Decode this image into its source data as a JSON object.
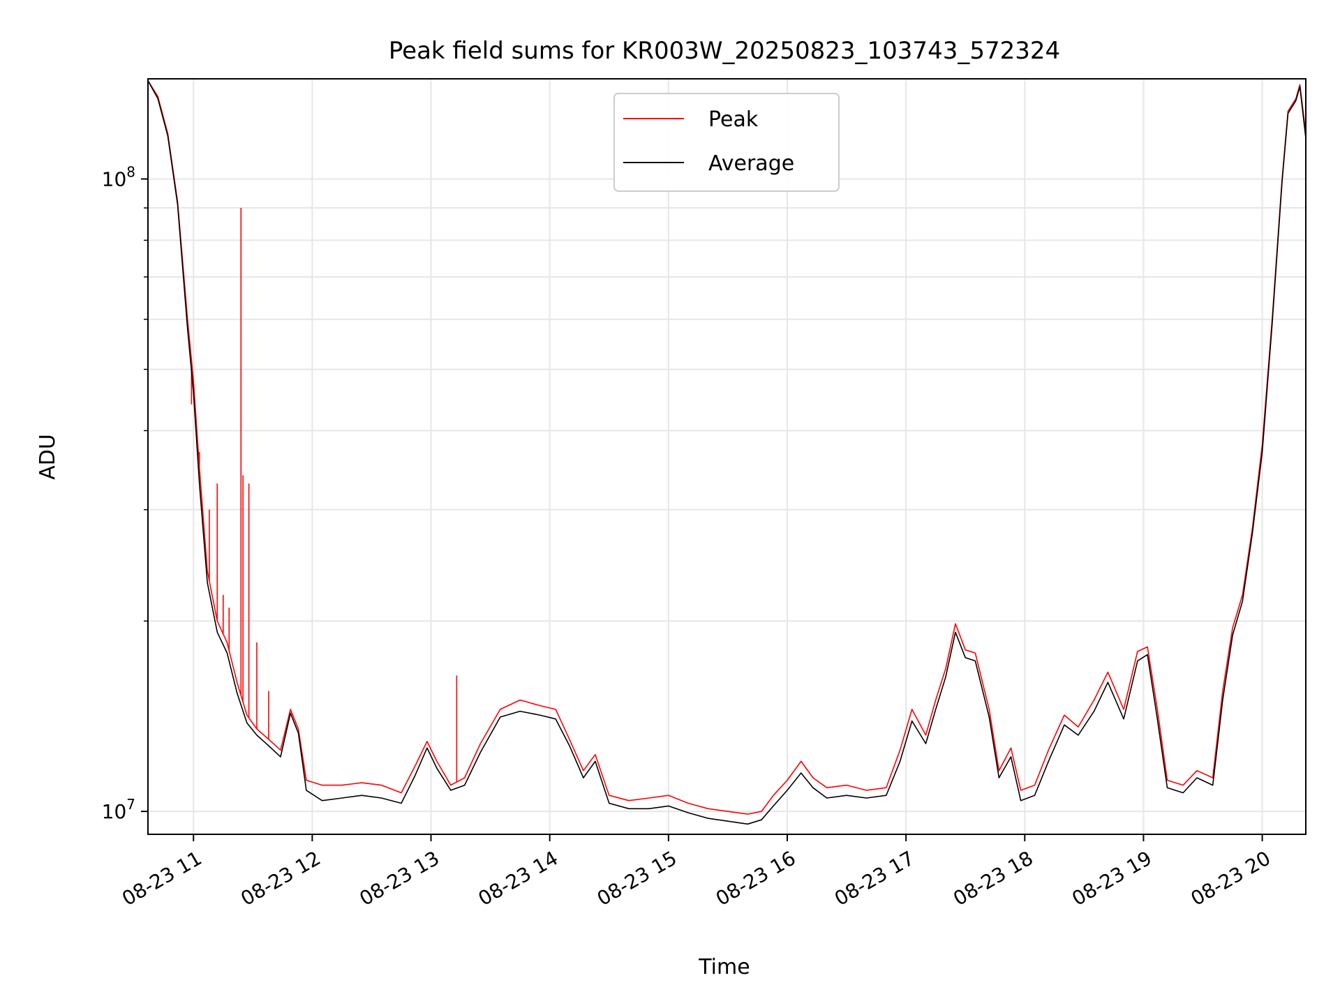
{
  "chart_data": {
    "type": "line",
    "title": "Peak field sums for KR003W_20250823_103743_572324",
    "xlabel": "Time",
    "ylabel": "ADU",
    "y_scale": "log",
    "ylim": [
      9200000,
      144000000
    ],
    "xlim": [
      "2025-08-23 10:37",
      "2025-08-23 20:22"
    ],
    "grid": true,
    "legend_position": "top-center",
    "x_ticks": [
      {
        "t": "2025-08-23 11:00",
        "label": "08-23 11"
      },
      {
        "t": "2025-08-23 12:00",
        "label": "08-23 12"
      },
      {
        "t": "2025-08-23 13:00",
        "label": "08-23 13"
      },
      {
        "t": "2025-08-23 14:00",
        "label": "08-23 14"
      },
      {
        "t": "2025-08-23 15:00",
        "label": "08-23 15"
      },
      {
        "t": "2025-08-23 16:00",
        "label": "08-23 16"
      },
      {
        "t": "2025-08-23 17:00",
        "label": "08-23 17"
      },
      {
        "t": "2025-08-23 18:00",
        "label": "08-23 18"
      },
      {
        "t": "2025-08-23 19:00",
        "label": "08-23 19"
      },
      {
        "t": "2025-08-23 20:00",
        "label": "08-23 20"
      }
    ],
    "y_ticks_major": [
      {
        "value": 10000000,
        "base": "10",
        "exp": "7"
      },
      {
        "value": 100000000,
        "base": "10",
        "exp": "8"
      }
    ],
    "y_ticks_minor": [
      20000000,
      30000000,
      40000000,
      50000000,
      60000000,
      70000000,
      80000000,
      90000000
    ],
    "series": [
      {
        "name": "Peak",
        "color": "#ff0000",
        "points": [
          [
            "2025-08-23 10:37",
            143000000
          ],
          [
            "2025-08-23 10:42",
            135000000
          ],
          [
            "2025-08-23 10:47",
            118000000
          ],
          [
            "2025-08-23 10:52",
            92000000
          ],
          [
            "2025-08-23 10:57",
            60000000
          ],
          [
            "2025-08-23 11:00",
            48000000
          ],
          [
            "2025-08-23 11:03",
            35000000
          ],
          [
            "2025-08-23 11:07",
            24000000
          ],
          [
            "2025-08-23 11:12",
            20000000
          ],
          [
            "2025-08-23 11:17",
            18500000
          ],
          [
            "2025-08-23 11:22",
            16000000
          ],
          [
            "2025-08-23 11:27",
            14200000
          ],
          [
            "2025-08-23 11:32",
            13500000
          ],
          [
            "2025-08-23 11:38",
            13000000
          ],
          [
            "2025-08-23 11:44",
            12500000
          ],
          [
            "2025-08-23 11:49",
            14500000
          ],
          [
            "2025-08-23 11:53",
            13500000
          ],
          [
            "2025-08-23 11:57",
            11200000
          ],
          [
            "2025-08-23 12:05",
            11000000
          ],
          [
            "2025-08-23 12:15",
            11000000
          ],
          [
            "2025-08-23 12:25",
            11100000
          ],
          [
            "2025-08-23 12:35",
            11000000
          ],
          [
            "2025-08-23 12:45",
            10700000
          ],
          [
            "2025-08-23 12:52",
            11800000
          ],
          [
            "2025-08-23 12:58",
            12900000
          ],
          [
            "2025-08-23 13:03",
            12000000
          ],
          [
            "2025-08-23 13:10",
            11000000
          ],
          [
            "2025-08-23 13:17",
            11300000
          ],
          [
            "2025-08-23 13:25",
            12800000
          ],
          [
            "2025-08-23 13:35",
            14500000
          ],
          [
            "2025-08-23 13:45",
            15000000
          ],
          [
            "2025-08-23 13:55",
            14700000
          ],
          [
            "2025-08-23 14:03",
            14500000
          ],
          [
            "2025-08-23 14:10",
            13000000
          ],
          [
            "2025-08-23 14:17",
            11600000
          ],
          [
            "2025-08-23 14:23",
            12300000
          ],
          [
            "2025-08-23 14:30",
            10600000
          ],
          [
            "2025-08-23 14:40",
            10400000
          ],
          [
            "2025-08-23 14:50",
            10500000
          ],
          [
            "2025-08-23 15:00",
            10600000
          ],
          [
            "2025-08-23 15:10",
            10300000
          ],
          [
            "2025-08-23 15:20",
            10100000
          ],
          [
            "2025-08-23 15:30",
            10000000
          ],
          [
            "2025-08-23 15:40",
            9900000
          ],
          [
            "2025-08-23 15:47",
            10000000
          ],
          [
            "2025-08-23 15:53",
            10600000
          ],
          [
            "2025-08-23 16:00",
            11200000
          ],
          [
            "2025-08-23 16:07",
            12000000
          ],
          [
            "2025-08-23 16:13",
            11300000
          ],
          [
            "2025-08-23 16:20",
            10900000
          ],
          [
            "2025-08-23 16:30",
            11000000
          ],
          [
            "2025-08-23 16:40",
            10800000
          ],
          [
            "2025-08-23 16:50",
            10900000
          ],
          [
            "2025-08-23 16:57",
            12500000
          ],
          [
            "2025-08-23 17:03",
            14500000
          ],
          [
            "2025-08-23 17:10",
            13200000
          ],
          [
            "2025-08-23 17:15",
            15000000
          ],
          [
            "2025-08-23 17:20",
            16800000
          ],
          [
            "2025-08-23 17:25",
            19800000
          ],
          [
            "2025-08-23 17:30",
            18000000
          ],
          [
            "2025-08-23 17:35",
            17800000
          ],
          [
            "2025-08-23 17:42",
            14500000
          ],
          [
            "2025-08-23 17:47",
            11600000
          ],
          [
            "2025-08-23 17:53",
            12600000
          ],
          [
            "2025-08-23 17:58",
            10800000
          ],
          [
            "2025-08-23 18:05",
            11000000
          ],
          [
            "2025-08-23 18:12",
            12500000
          ],
          [
            "2025-08-23 18:20",
            14200000
          ],
          [
            "2025-08-23 18:27",
            13600000
          ],
          [
            "2025-08-23 18:35",
            15000000
          ],
          [
            "2025-08-23 18:42",
            16600000
          ],
          [
            "2025-08-23 18:50",
            14500000
          ],
          [
            "2025-08-23 18:57",
            17900000
          ],
          [
            "2025-08-23 19:02",
            18200000
          ],
          [
            "2025-08-23 19:07",
            14500000
          ],
          [
            "2025-08-23 19:12",
            11200000
          ],
          [
            "2025-08-23 19:20",
            11000000
          ],
          [
            "2025-08-23 19:27",
            11600000
          ],
          [
            "2025-08-23 19:35",
            11300000
          ],
          [
            "2025-08-23 19:40",
            15500000
          ],
          [
            "2025-08-23 19:45",
            19500000
          ],
          [
            "2025-08-23 19:50",
            22000000
          ],
          [
            "2025-08-23 19:55",
            28000000
          ],
          [
            "2025-08-23 20:00",
            38000000
          ],
          [
            "2025-08-23 20:05",
            60000000
          ],
          [
            "2025-08-23 20:10",
            100000000
          ],
          [
            "2025-08-23 20:13",
            128000000
          ],
          [
            "2025-08-23 20:17",
            134000000
          ],
          [
            "2025-08-23 20:19",
            141000000
          ],
          [
            "2025-08-23 20:22",
            118000000
          ]
        ],
        "spikes": [
          [
            "2025-08-23 10:59",
            44000000
          ],
          [
            "2025-08-23 11:03",
            37000000
          ],
          [
            "2025-08-23 11:08",
            30000000
          ],
          [
            "2025-08-23 11:12",
            33000000
          ],
          [
            "2025-08-23 11:15",
            22000000
          ],
          [
            "2025-08-23 11:18",
            21000000
          ],
          [
            "2025-08-23 11:24",
            90000000
          ],
          [
            "2025-08-23 11:25",
            34000000
          ],
          [
            "2025-08-23 11:28",
            33000000
          ],
          [
            "2025-08-23 11:32",
            18500000
          ],
          [
            "2025-08-23 11:38",
            15500000
          ],
          [
            "2025-08-23 13:13",
            16400000
          ]
        ]
      },
      {
        "name": "Average",
        "color": "#000000",
        "points": [
          [
            "2025-08-23 10:37",
            143000000
          ],
          [
            "2025-08-23 10:42",
            134000000
          ],
          [
            "2025-08-23 10:47",
            117000000
          ],
          [
            "2025-08-23 10:52",
            91000000
          ],
          [
            "2025-08-23 10:57",
            58000000
          ],
          [
            "2025-08-23 11:00",
            46000000
          ],
          [
            "2025-08-23 11:03",
            33000000
          ],
          [
            "2025-08-23 11:07",
            23000000
          ],
          [
            "2025-08-23 11:12",
            19200000
          ],
          [
            "2025-08-23 11:17",
            17800000
          ],
          [
            "2025-08-23 11:22",
            15400000
          ],
          [
            "2025-08-23 11:27",
            13800000
          ],
          [
            "2025-08-23 11:32",
            13200000
          ],
          [
            "2025-08-23 11:38",
            12700000
          ],
          [
            "2025-08-23 11:44",
            12200000
          ],
          [
            "2025-08-23 11:49",
            14300000
          ],
          [
            "2025-08-23 11:53",
            13300000
          ],
          [
            "2025-08-23 11:57",
            10800000
          ],
          [
            "2025-08-23 12:05",
            10400000
          ],
          [
            "2025-08-23 12:15",
            10500000
          ],
          [
            "2025-08-23 12:25",
            10600000
          ],
          [
            "2025-08-23 12:35",
            10500000
          ],
          [
            "2025-08-23 12:45",
            10300000
          ],
          [
            "2025-08-23 12:52",
            11400000
          ],
          [
            "2025-08-23 12:58",
            12600000
          ],
          [
            "2025-08-23 13:03",
            11700000
          ],
          [
            "2025-08-23 13:10",
            10800000
          ],
          [
            "2025-08-23 13:17",
            11000000
          ],
          [
            "2025-08-23 13:25",
            12400000
          ],
          [
            "2025-08-23 13:35",
            14100000
          ],
          [
            "2025-08-23 13:45",
            14400000
          ],
          [
            "2025-08-23 13:55",
            14200000
          ],
          [
            "2025-08-23 14:03",
            14000000
          ],
          [
            "2025-08-23 14:10",
            12700000
          ],
          [
            "2025-08-23 14:17",
            11300000
          ],
          [
            "2025-08-23 14:23",
            12000000
          ],
          [
            "2025-08-23 14:30",
            10300000
          ],
          [
            "2025-08-23 14:40",
            10100000
          ],
          [
            "2025-08-23 14:50",
            10100000
          ],
          [
            "2025-08-23 15:00",
            10200000
          ],
          [
            "2025-08-23 15:10",
            9950000
          ],
          [
            "2025-08-23 15:20",
            9750000
          ],
          [
            "2025-08-23 15:30",
            9650000
          ],
          [
            "2025-08-23 15:40",
            9550000
          ],
          [
            "2025-08-23 15:47",
            9700000
          ],
          [
            "2025-08-23 15:53",
            10200000
          ],
          [
            "2025-08-23 16:00",
            10800000
          ],
          [
            "2025-08-23 16:07",
            11500000
          ],
          [
            "2025-08-23 16:13",
            10900000
          ],
          [
            "2025-08-23 16:20",
            10500000
          ],
          [
            "2025-08-23 16:30",
            10600000
          ],
          [
            "2025-08-23 16:40",
            10500000
          ],
          [
            "2025-08-23 16:50",
            10600000
          ],
          [
            "2025-08-23 16:57",
            12000000
          ],
          [
            "2025-08-23 17:03",
            13900000
          ],
          [
            "2025-08-23 17:10",
            12800000
          ],
          [
            "2025-08-23 17:15",
            14500000
          ],
          [
            "2025-08-23 17:20",
            16300000
          ],
          [
            "2025-08-23 17:25",
            19200000
          ],
          [
            "2025-08-23 17:30",
            17500000
          ],
          [
            "2025-08-23 17:35",
            17300000
          ],
          [
            "2025-08-23 17:42",
            14100000
          ],
          [
            "2025-08-23 17:47",
            11300000
          ],
          [
            "2025-08-23 17:53",
            12200000
          ],
          [
            "2025-08-23 17:58",
            10400000
          ],
          [
            "2025-08-23 18:05",
            10600000
          ],
          [
            "2025-08-23 18:12",
            12000000
          ],
          [
            "2025-08-23 18:20",
            13700000
          ],
          [
            "2025-08-23 18:27",
            13200000
          ],
          [
            "2025-08-23 18:35",
            14400000
          ],
          [
            "2025-08-23 18:42",
            16000000
          ],
          [
            "2025-08-23 18:50",
            14000000
          ],
          [
            "2025-08-23 18:57",
            17300000
          ],
          [
            "2025-08-23 19:02",
            17700000
          ],
          [
            "2025-08-23 19:07",
            14000000
          ],
          [
            "2025-08-23 19:12",
            10900000
          ],
          [
            "2025-08-23 19:20",
            10700000
          ],
          [
            "2025-08-23 19:27",
            11300000
          ],
          [
            "2025-08-23 19:35",
            11000000
          ],
          [
            "2025-08-23 19:40",
            15000000
          ],
          [
            "2025-08-23 19:45",
            19000000
          ],
          [
            "2025-08-23 19:50",
            21500000
          ],
          [
            "2025-08-23 19:55",
            27500000
          ],
          [
            "2025-08-23 20:00",
            37000000
          ],
          [
            "2025-08-23 20:05",
            59000000
          ],
          [
            "2025-08-23 20:10",
            99000000
          ],
          [
            "2025-08-23 20:13",
            127000000
          ],
          [
            "2025-08-23 20:17",
            133000000
          ],
          [
            "2025-08-23 20:19",
            140000000
          ],
          [
            "2025-08-23 20:22",
            116000000
          ]
        ]
      }
    ]
  }
}
